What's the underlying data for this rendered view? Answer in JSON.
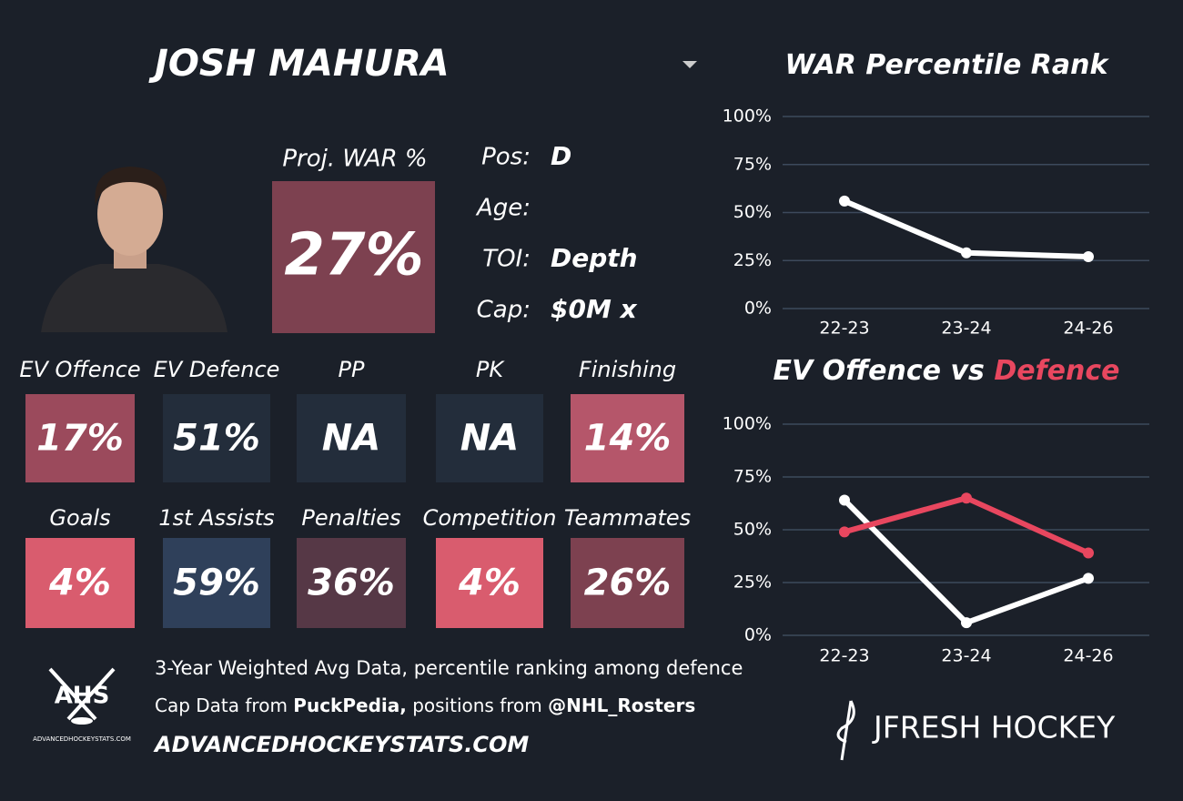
{
  "header": {
    "title": "JOSH MAHURA"
  },
  "profile": {
    "proj_war_label": "Proj. WAR %",
    "proj_war": "27%",
    "proj_war_color": "#7d4150",
    "fields": [
      {
        "label": "Pos:",
        "value": "D"
      },
      {
        "label": "Age:"
      },
      {
        "label": "TOI:",
        "value": "Depth"
      },
      {
        "label": "Cap:",
        "value": "$0M x"
      }
    ]
  },
  "tiles": [
    {
      "label": "EV Offence",
      "value": "17%",
      "color": "#9b4a5c"
    },
    {
      "label": "EV Defence",
      "value": "51%",
      "color": "#232d3b"
    },
    {
      "label": "PP",
      "value": "NA",
      "color": "#232d3b"
    },
    {
      "label": "PK",
      "value": "NA",
      "color": "#232d3b"
    },
    {
      "label": "Finishing",
      "value": "14%",
      "color": "#b5566a"
    },
    {
      "label": "Goals",
      "value": "4%",
      "color": "#d95c6e"
    },
    {
      "label": "1st Assists",
      "value": "59%",
      "color": "#2f405a"
    },
    {
      "label": "Penalties",
      "value": "36%",
      "color": "#563846"
    },
    {
      "label": "Competition",
      "value": "4%",
      "color": "#d95c6e"
    },
    {
      "label": "Teammates",
      "value": "26%",
      "color": "#7d4150"
    }
  ],
  "footer": {
    "note": "3-Year Weighted Avg Data, percentile ranking among defence",
    "credits": [
      "Cap Data from ",
      "PuckPedia,",
      " positions from ",
      "@NHL_Rosters"
    ],
    "site": "ADVANCEDHOCKEYSTATS.COM",
    "logo": "AHS",
    "logo_sub": "ADVANCEDHOCKEYSTATS.COM",
    "brand": "JFRESH HOCKEY"
  },
  "chart_data": [
    {
      "type": "line",
      "title": "WAR Percentile Rank",
      "categories": [
        "22-23",
        "23-24",
        "24-26"
      ],
      "series": [
        {
          "color": "#ffffff",
          "values": [
            56,
            29,
            27
          ]
        }
      ],
      "ylim": [
        0,
        100
      ],
      "yticks": [
        {
          "value": 0,
          "label": "0%"
        },
        {
          "value": 25,
          "label": "25%"
        },
        {
          "value": 50,
          "label": "50%"
        },
        {
          "value": 75,
          "label": "75%"
        },
        {
          "value": 100,
          "label": "100%"
        }
      ],
      "grid": true
    },
    {
      "type": "line",
      "title": "EV Offence vs ",
      "title_highlight": "Defence",
      "title_highlight_color": "#e8475f",
      "categories": [
        "22-23",
        "23-24",
        "24-26"
      ],
      "series": [
        {
          "color": "#ffffff",
          "values": [
            64,
            6,
            27
          ]
        },
        {
          "color": "#e8475f",
          "values": [
            49,
            65,
            39
          ]
        }
      ],
      "ylim": [
        0,
        100
      ],
      "yticks": [
        {
          "value": 0,
          "label": "0%"
        },
        {
          "value": 25,
          "label": "25%"
        },
        {
          "value": 50,
          "label": "50%"
        },
        {
          "value": 75,
          "label": "75%"
        },
        {
          "value": 100,
          "label": "100%"
        }
      ],
      "grid": true
    }
  ]
}
